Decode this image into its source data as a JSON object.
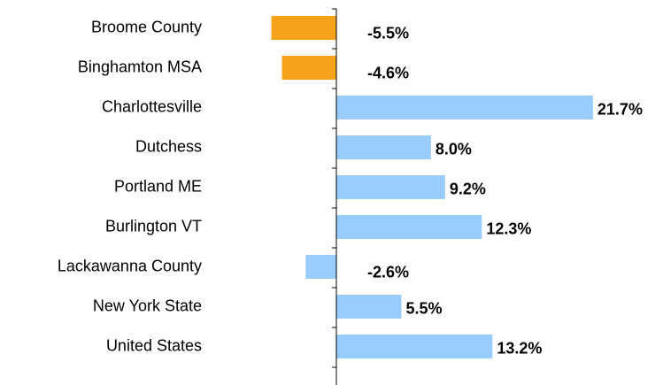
{
  "chart_data": {
    "type": "bar",
    "orientation": "horizontal",
    "categories": [
      "Broome County",
      "Binghamton MSA",
      "Charlottesville",
      "Dutchess",
      "Portland ME",
      "Burlington VT",
      "Lackawanna County",
      "New York State",
      "United States"
    ],
    "values": [
      -5.5,
      -4.6,
      21.7,
      8.0,
      9.2,
      12.3,
      -2.6,
      5.5,
      13.2
    ],
    "value_labels": [
      "-5.5%",
      "-4.6%",
      "21.7%",
      "8.0%",
      "9.2%",
      "12.3%",
      "-2.6%",
      "5.5%",
      "13.2%"
    ],
    "colors": [
      "#f7a21b",
      "#f7a21b",
      "#99ccff",
      "#99ccff",
      "#99ccff",
      "#99ccff",
      "#99ccff",
      "#99ccff",
      "#99ccff"
    ]
  }
}
